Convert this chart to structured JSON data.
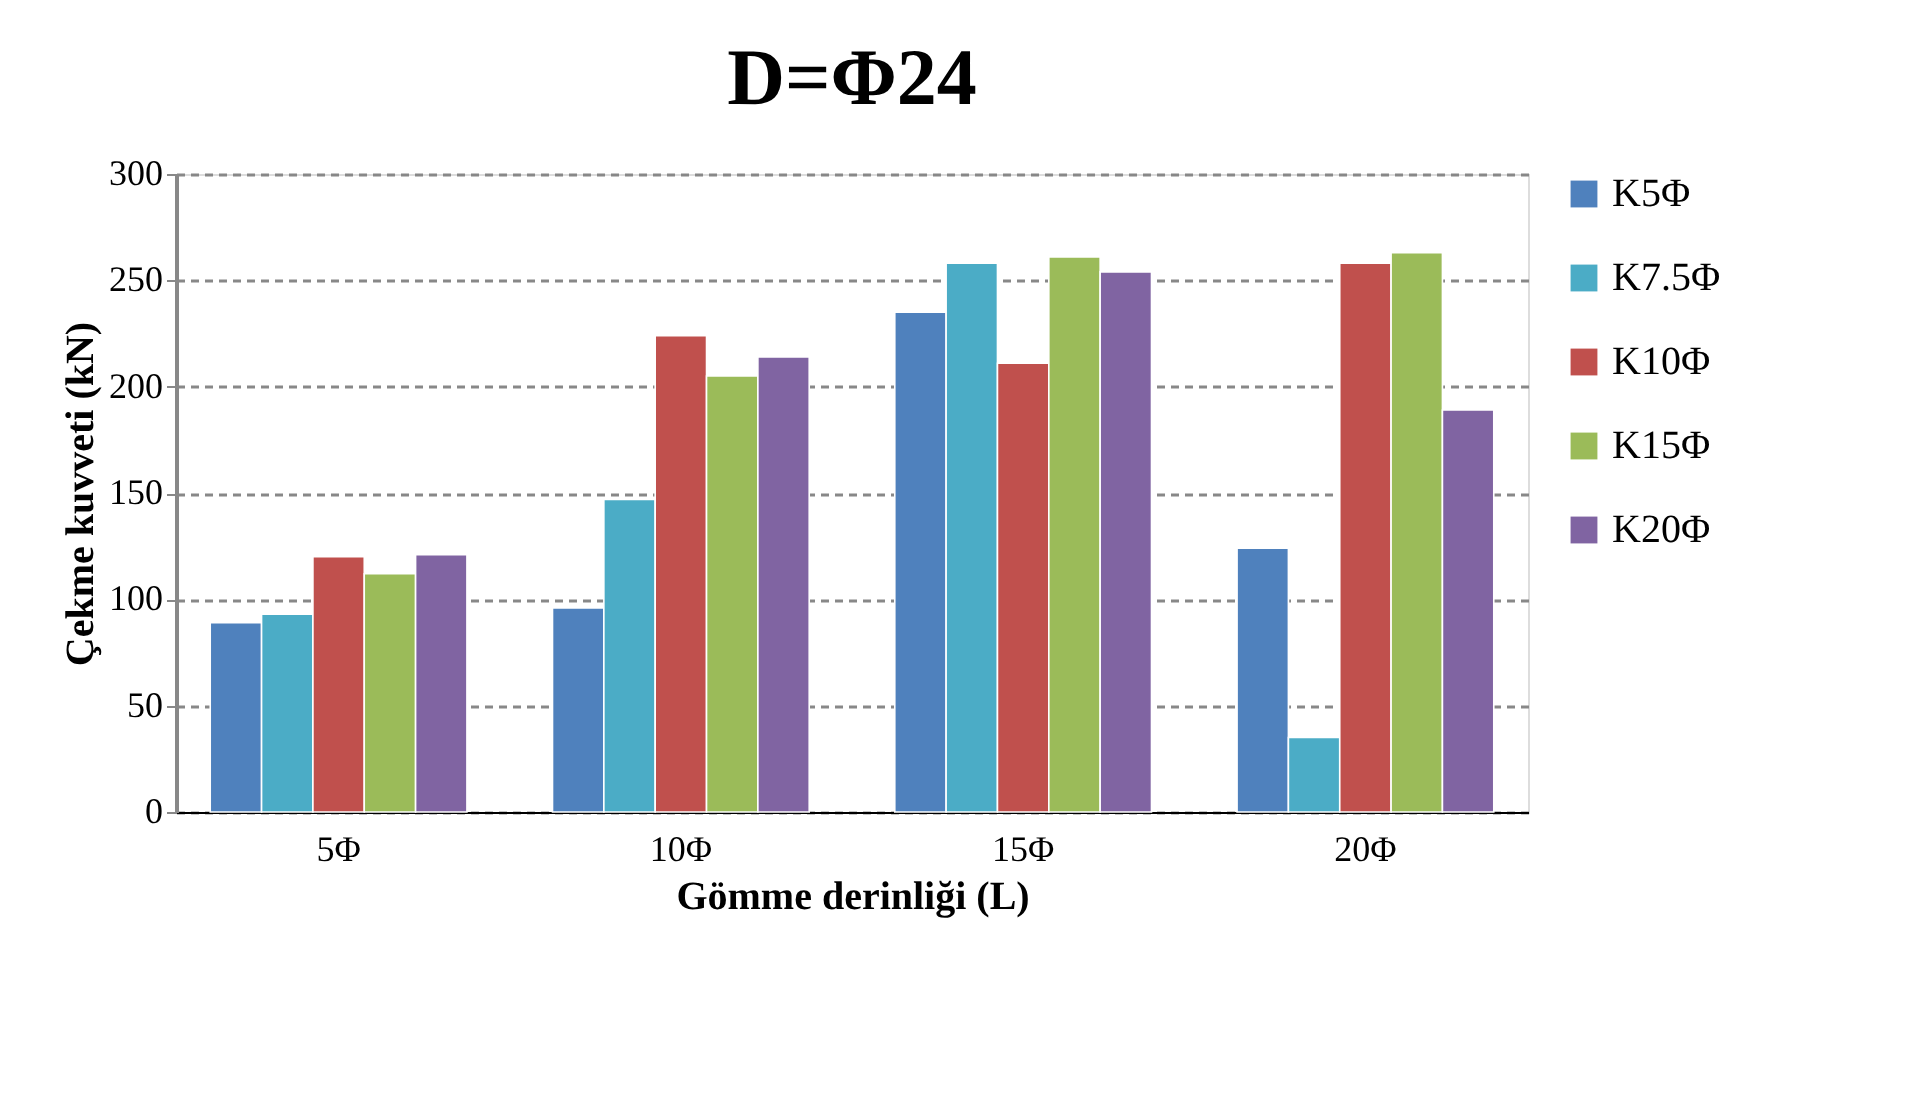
{
  "chart_data": {
    "type": "bar",
    "title": "D=Φ24",
    "xlabel": "Gömme derinliği (L)",
    "ylabel": "Çekme kuvveti (kN)",
    "categories": [
      "5Φ",
      "10Φ",
      "15Φ",
      "20Φ"
    ],
    "series": [
      {
        "name": "K5Φ",
        "color": "#4f81bd",
        "values": [
          89,
          96,
          235,
          124
        ]
      },
      {
        "name": "K7.5Φ",
        "color": "#4bacc6",
        "values": [
          93,
          147,
          258,
          35
        ]
      },
      {
        "name": "K10Φ",
        "color": "#c0504d",
        "values": [
          120,
          224,
          211,
          258
        ]
      },
      {
        "name": "K15Φ",
        "color": "#9bbb59",
        "values": [
          112,
          205,
          261,
          263
        ]
      },
      {
        "name": "K20Φ",
        "color": "#8064a2",
        "values": [
          121,
          214,
          254,
          189
        ]
      }
    ],
    "ylim": [
      0,
      300
    ],
    "yticks": [
      0,
      50,
      100,
      150,
      200,
      250,
      300
    ],
    "grid": "y",
    "legend": "right"
  }
}
